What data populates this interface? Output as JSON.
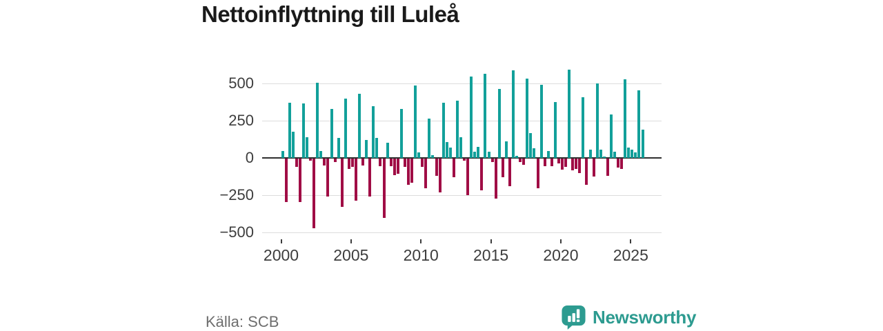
{
  "title": "Nettoinflyttning till Luleå",
  "source": "Källa: SCB",
  "brand": {
    "name": "Newsworthy",
    "color": "#2d9b90",
    "icon": "bar-chart-speech-bubble-icon"
  },
  "chart_data": {
    "type": "bar",
    "title": "Nettoinflyttning till Luleå",
    "x_frequency": "quarterly",
    "xlabel": "",
    "ylabel": "",
    "ylim": [
      -500,
      620
    ],
    "yticks": [
      500,
      250,
      0,
      -250,
      -500
    ],
    "xticks": [
      2000,
      2005,
      2010,
      2015,
      2020,
      2025
    ],
    "grid": true,
    "legend": "none",
    "positive_color": "#12a09a",
    "negative_color": "#a00d45",
    "series_by_year": [
      {
        "year": 2000,
        "values": [
          45,
          -290,
          370,
          175
        ]
      },
      {
        "year": 2001,
        "values": [
          -55,
          -290,
          365,
          140
        ]
      },
      {
        "year": 2002,
        "values": [
          -15,
          -470,
          505,
          45
        ]
      },
      {
        "year": 2003,
        "values": [
          -45,
          -255,
          330,
          -25
        ]
      },
      {
        "year": 2004,
        "values": [
          135,
          -325,
          400,
          -70
        ]
      },
      {
        "year": 2005,
        "values": [
          -55,
          -285,
          430,
          -45
        ]
      },
      {
        "year": 2006,
        "values": [
          120,
          -255,
          350,
          135
        ]
      },
      {
        "year": 2007,
        "values": [
          -50,
          -400,
          100,
          -50
        ]
      },
      {
        "year": 2008,
        "values": [
          -110,
          -100,
          330,
          -55
        ]
      },
      {
        "year": 2009,
        "values": [
          -175,
          -160,
          485,
          35
        ]
      },
      {
        "year": 2010,
        "values": [
          -55,
          -200,
          265,
          20
        ]
      },
      {
        "year": 2011,
        "values": [
          -115,
          -225,
          370,
          105
        ]
      },
      {
        "year": 2012,
        "values": [
          70,
          -125,
          385,
          140
        ]
      },
      {
        "year": 2013,
        "values": [
          -15,
          -245,
          545,
          40
        ]
      },
      {
        "year": 2014,
        "values": [
          75,
          -215,
          565,
          40
        ]
      },
      {
        "year": 2015,
        "values": [
          -25,
          -270,
          465,
          -125
        ]
      },
      {
        "year": 2016,
        "values": [
          110,
          -185,
          590,
          15
        ]
      },
      {
        "year": 2017,
        "values": [
          -25,
          -40,
          535,
          165
        ]
      },
      {
        "year": 2018,
        "values": [
          65,
          -200,
          490,
          -50
        ]
      },
      {
        "year": 2019,
        "values": [
          45,
          -50,
          375,
          -30
        ]
      },
      {
        "year": 2020,
        "values": [
          -75,
          -55,
          595,
          -80
        ]
      },
      {
        "year": 2021,
        "values": [
          -70,
          -95,
          410,
          -175
        ]
      },
      {
        "year": 2022,
        "values": [
          55,
          -120,
          500,
          55
        ]
      },
      {
        "year": 2023,
        "values": [
          10,
          -115,
          290,
          40
        ]
      },
      {
        "year": 2024,
        "values": [
          -60,
          -70,
          530,
          70
        ]
      },
      {
        "year": 2025,
        "values": [
          55,
          35,
          455,
          190
        ]
      }
    ]
  }
}
